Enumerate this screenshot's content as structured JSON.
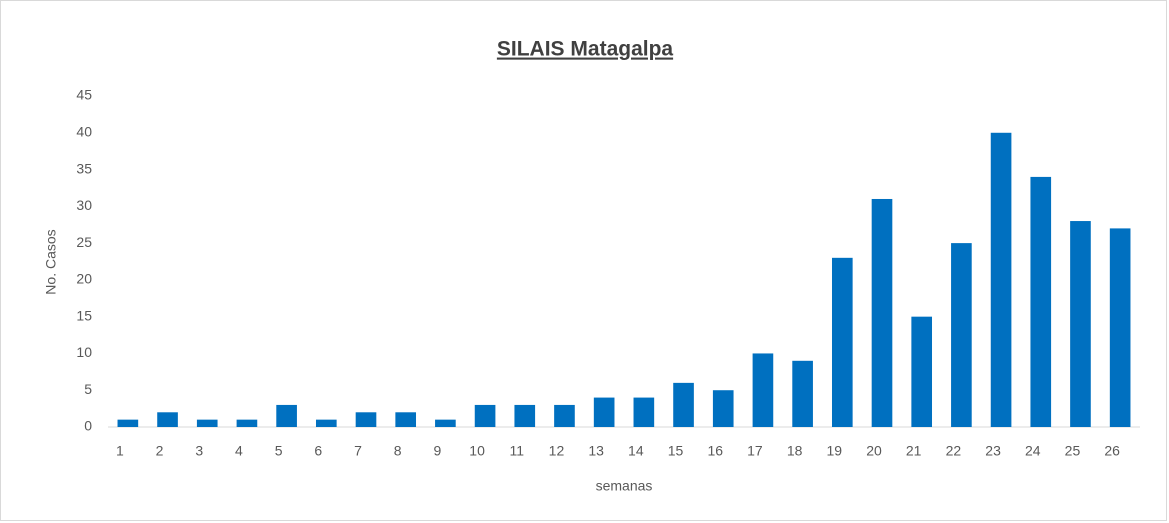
{
  "chart_data": {
    "type": "bar",
    "title": "SILAIS Matagalpa",
    "x_label": "semanas",
    "y_label": "No. Casos",
    "categories": [
      "1",
      "2",
      "3",
      "4",
      "5",
      "6",
      "7",
      "8",
      "9",
      "10",
      "11",
      "12",
      "13",
      "14",
      "15",
      "16",
      "17",
      "18",
      "19",
      "20",
      "21",
      "22",
      "23",
      "24",
      "25",
      "26"
    ],
    "values": [
      1,
      2,
      1,
      1,
      3,
      1,
      2,
      2,
      1,
      3,
      3,
      3,
      4,
      4,
      6,
      5,
      10,
      9,
      23,
      31,
      15,
      25,
      40,
      34,
      28,
      27
    ],
    "color": "#0070c0",
    "ylim": [
      0,
      45
    ],
    "yticks": [
      0,
      5,
      10,
      15,
      20,
      25,
      30,
      35,
      40,
      45
    ],
    "grid": false
  }
}
